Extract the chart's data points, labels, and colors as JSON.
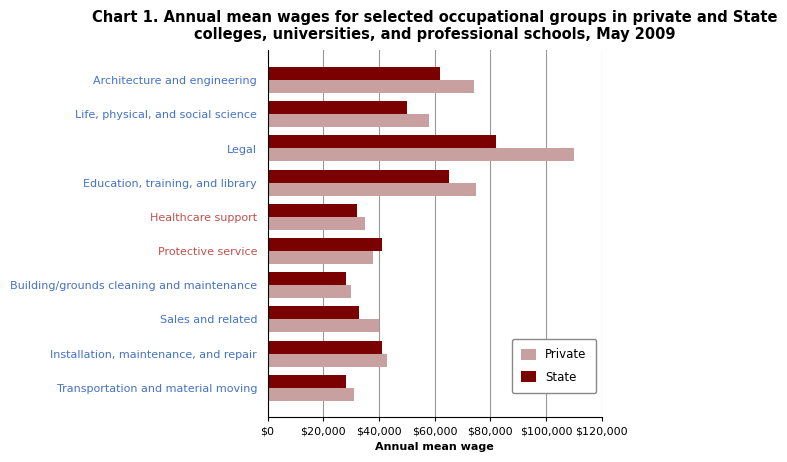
{
  "title": "Chart 1. Annual mean wages for selected occupational groups in private and State\ncolleges, universities, and professional schools, May 2009",
  "categories": [
    "Architecture and engineering",
    "Life, physical, and social science",
    "Legal",
    "Education, training, and library",
    "Healthcare support",
    "Protective service",
    "Building/grounds cleaning and maintenance",
    "Sales and related",
    "Installation, maintenance, and repair",
    "Transportation and material moving"
  ],
  "label_colors": [
    "#4472C4",
    "#4472C4",
    "#4472C4",
    "#4472C4",
    "#C0504D",
    "#C0504D",
    "#4472C4",
    "#4472C4",
    "#4472C4",
    "#4472C4"
  ],
  "private_values": [
    74000,
    58000,
    110000,
    75000,
    35000,
    38000,
    30000,
    40000,
    43000,
    31000
  ],
  "state_values": [
    62000,
    50000,
    82000,
    65000,
    32000,
    41000,
    28000,
    33000,
    41000,
    28000
  ],
  "private_color": "#C9A0A0",
  "state_color": "#7B0000",
  "xlabel": "Annual mean wage",
  "xlim": [
    0,
    120000
  ],
  "xticks": [
    0,
    20000,
    40000,
    60000,
    80000,
    100000,
    120000
  ],
  "xtick_labels": [
    "$0",
    "$20,000",
    "$40,000",
    "$60,000",
    "$80,000",
    "$100,000",
    "$120,000"
  ],
  "legend_private": "Private",
  "legend_state": "State",
  "title_fontsize": 10.5,
  "label_fontsize": 8,
  "tick_fontsize": 8,
  "bar_height": 0.38,
  "background_color": "#FFFFFF",
  "grid_color": "#999999",
  "border_color": "#000000"
}
